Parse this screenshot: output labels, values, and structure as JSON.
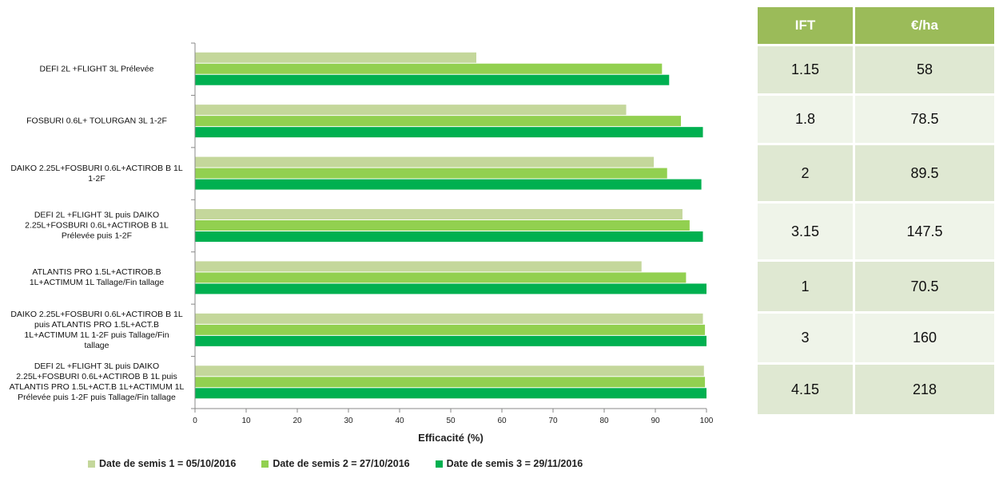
{
  "chart_data": {
    "type": "bar",
    "orientation": "horizontal",
    "categories": [
      "DEFI 2L +FLIGHT 3L Prélevée",
      "FOSBURI 0.6L+ TOLURGAN 3L 1-2F",
      "DAIKO 2.25L+FOSBURI 0.6L+ACTIROB B 1L 1-2F",
      "DEFI 2L +FLIGHT 3L puis DAIKO 2.25L+FOSBURI 0.6L+ACTIROB B 1L Prélevée puis 1-2F",
      "ATLANTIS PRO 1.5L+ACTIROB.B 1L+ACTIMUM 1L Tallage/Fin tallage",
      "DAIKO 2.25L+FOSBURI 0.6L+ACTIROB B 1L puis ATLANTIS PRO 1.5L+ACT.B 1L+ACTIMUM 1L 1-2F puis Tallage/Fin tallage",
      "DEFI 2L +FLIGHT 3L puis DAIKO 2.25L+FOSBURI 0.6L+ACTIROB B 1L puis ATLANTIS PRO 1.5L+ACT.B 1L+ACTIMUM 1L Prélevée puis 1-2F puis Tallage/Fin tallage"
    ],
    "category_lines": [
      [
        "DEFI 2L +FLIGHT 3L Prélevée"
      ],
      [
        "FOSBURI 0.6L+ TOLURGAN 3L 1-2F"
      ],
      [
        "DAIKO 2.25L+FOSBURI 0.6L+ACTIROB B 1L",
        "1-2F"
      ],
      [
        "DEFI 2L +FLIGHT 3L puis DAIKO",
        "2.25L+FOSBURI 0.6L+ACTIROB B 1L",
        "Prélevée puis 1-2F"
      ],
      [
        "ATLANTIS PRO 1.5L+ACTIROB.B",
        "1L+ACTIMUM 1L Tallage/Fin tallage"
      ],
      [
        "DAIKO 2.25L+FOSBURI 0.6L+ACTIROB B 1L",
        "puis ATLANTIS PRO 1.5L+ACT.B",
        "1L+ACTIMUM 1L 1-2F puis Tallage/Fin",
        "tallage"
      ],
      [
        "DEFI 2L +FLIGHT 3L puis DAIKO",
        "2.25L+FOSBURI 0.6L+ACTIROB B 1L puis",
        "ATLANTIS PRO 1.5L+ACT.B 1L+ACTIMUM 1L",
        "Prélevée puis 1-2F puis Tallage/Fin tallage"
      ]
    ],
    "series": [
      {
        "name": "Date de semis 1 = 05/10/2016",
        "color": "#c4d79b",
        "values": [
          55,
          84.3,
          89.7,
          95.3,
          87.3,
          99.3,
          99.5
        ]
      },
      {
        "name": "Date de semis 2 = 27/10/2016",
        "color": "#92d050",
        "values": [
          91.3,
          95,
          92.3,
          96.7,
          96,
          99.7,
          99.7
        ]
      },
      {
        "name": "Date de semis 3 = 29/11/2016",
        "color": "#00b050",
        "values": [
          92.7,
          99.3,
          99,
          99.3,
          100,
          100,
          100
        ]
      }
    ],
    "xlabel": "Efficacité (%)",
    "xlim": [
      0,
      100
    ],
    "xticks": [
      0,
      10,
      20,
      30,
      40,
      50,
      60,
      70,
      80,
      90,
      100
    ],
    "legend_position": "bottom",
    "grid": false
  },
  "table": {
    "headers": [
      "IFT",
      "€/ha"
    ],
    "rows": [
      [
        "1.15",
        "58"
      ],
      [
        "1.8",
        "78.5"
      ],
      [
        "2",
        "89.5"
      ],
      [
        "3.15",
        "147.5"
      ],
      [
        "1",
        "70.5"
      ],
      [
        "3",
        "160"
      ],
      [
        "4.15",
        "218"
      ]
    ],
    "header_color": "#9bbb59"
  }
}
